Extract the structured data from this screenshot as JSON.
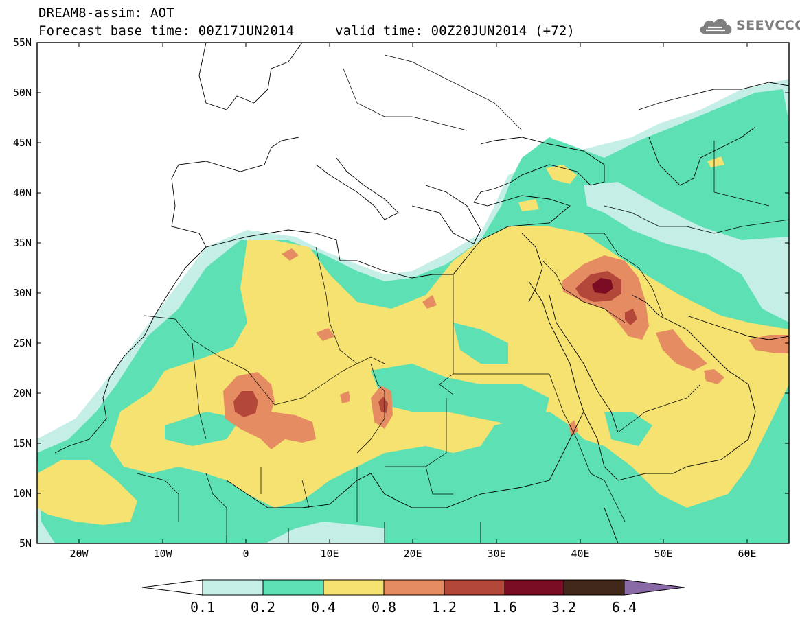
{
  "header": {
    "title": "DREAM8-assim: AOT",
    "base_time": "Forecast base time: 00Z17JUN2014",
    "valid_time": "valid time: 00Z20JUN2014 (+72)"
  },
  "logo": {
    "text": "SEEVCCC",
    "icon": "cloud-icon",
    "color": "#7f7f7f"
  },
  "axes": {
    "lat_labels": [
      "55N",
      "50N",
      "45N",
      "40N",
      "35N",
      "30N",
      "25N",
      "20N",
      "15N",
      "10N",
      "5N"
    ],
    "lon_labels": [
      "20W",
      "10W",
      "0",
      "10E",
      "20E",
      "30E",
      "40E",
      "50E",
      "60E"
    ],
    "lat_range": [
      5,
      55
    ],
    "lon_range": [
      -25,
      65
    ]
  },
  "legend": {
    "labels": [
      "0.1",
      "0.2",
      "0.4",
      "0.8",
      "1.2",
      "1.6",
      "3.2",
      "6.4"
    ],
    "colors": [
      "#ffffff",
      "#c4eee6",
      "#5ce0b4",
      "#f5e271",
      "#e58c62",
      "#b3473a",
      "#7a0c23",
      "#41281a",
      "#8a6aa6"
    ]
  }
}
